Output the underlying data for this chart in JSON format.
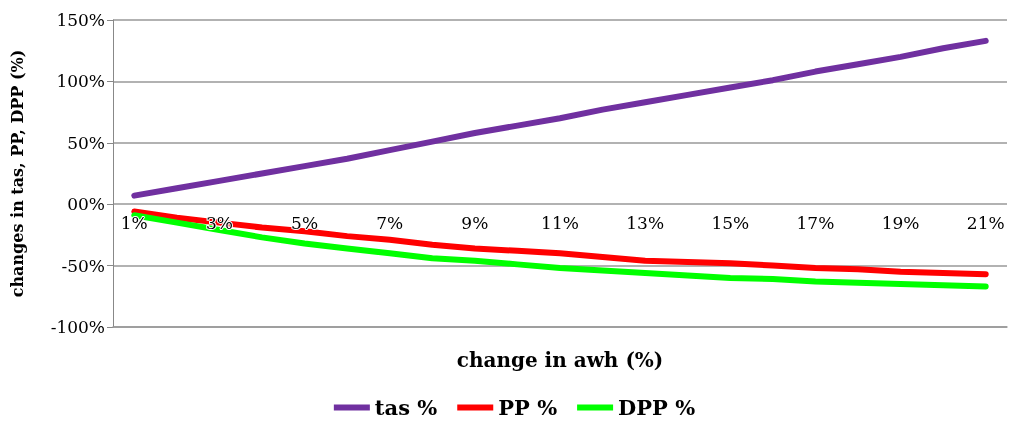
{
  "chart_data": {
    "type": "line",
    "xlabel": "change in awh (%)",
    "ylabel": "changes in tas, PP, DPP (%)",
    "categories": [
      "1%",
      null,
      "3%",
      null,
      "5%",
      null,
      "7%",
      null,
      "9%",
      null,
      "11%",
      null,
      "13%",
      null,
      "15%",
      null,
      "17%",
      null,
      "19%",
      null,
      "21%"
    ],
    "series": [
      {
        "name": "tas %",
        "color": "#7030a0",
        "values": [
          7,
          13,
          19,
          25,
          31,
          37,
          44,
          51,
          58,
          64,
          70,
          77,
          83,
          89,
          95,
          101,
          108,
          114,
          120,
          127,
          133
        ]
      },
      {
        "name": "PP %",
        "color": "#ff0000",
        "values": [
          -6,
          -11,
          -15,
          -19,
          -22,
          -26,
          -29,
          -33,
          -36,
          -38,
          -40,
          -43,
          -46,
          -47,
          -48,
          -50,
          -52,
          -53,
          -55,
          -56,
          -57
        ]
      },
      {
        "name": "DPP %",
        "color": "#00ff00",
        "values": [
          -9,
          -15,
          -21,
          -27,
          -32,
          -36,
          -40,
          -44,
          -46,
          -49,
          -52,
          -54,
          -56,
          -58,
          -60,
          -61,
          -63,
          -64,
          -65,
          -66,
          -67
        ]
      }
    ],
    "ylim": [
      -100,
      150
    ],
    "yticks": [
      {
        "value": -100,
        "label": "-100%"
      },
      {
        "value": -50,
        "label": "-50%"
      },
      {
        "value": 0,
        "label": "00%"
      },
      {
        "value": 50,
        "label": "50%"
      },
      {
        "value": 100,
        "label": "100%"
      },
      {
        "value": 150,
        "label": "150%"
      }
    ],
    "grid": "y",
    "legend": "bottom",
    "marker": "none",
    "line_style": "solid"
  }
}
